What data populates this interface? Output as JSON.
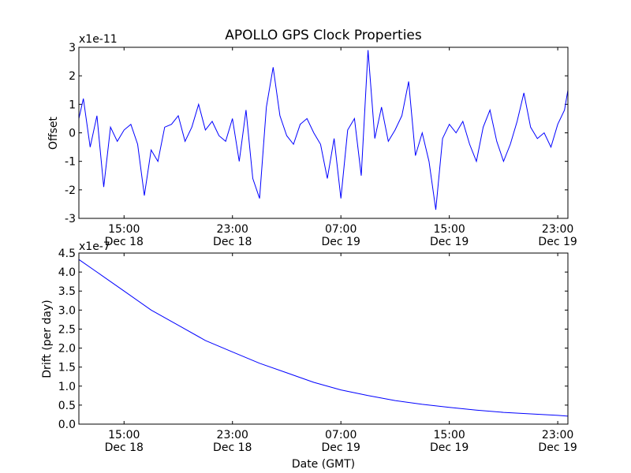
{
  "chart_data": [
    {
      "type": "line",
      "title": "APOLLO GPS Clock Properties",
      "ylabel": "Offset",
      "y_multiplier": "x1e-11",
      "ylim": [
        -3,
        3
      ],
      "y_ticks": [
        "3",
        "2",
        "1",
        "0",
        "-1",
        "-2",
        "-3"
      ],
      "x_ticks": [
        {
          "time": "15:00",
          "date": "Dec 18"
        },
        {
          "time": "23:00",
          "date": "Dec 18"
        },
        {
          "time": "07:00",
          "date": "Dec 19"
        },
        {
          "time": "15:00",
          "date": "Dec 19"
        },
        {
          "time": "23:00",
          "date": "Dec 19"
        }
      ],
      "x_start": "Dec 18 11:40",
      "x_end": "Dec 19 23:45",
      "grid": false,
      "series_color": "#0000ff",
      "series": [
        {
          "x": [
            "Dec 18 11:40",
            "Dec 18 12:00",
            "Dec 18 12:30",
            "Dec 18 13:00",
            "Dec 18 13:30",
            "Dec 18 14:00",
            "Dec 18 14:30",
            "Dec 18 15:00",
            "Dec 18 15:30",
            "Dec 18 16:00",
            "Dec 18 16:30",
            "Dec 18 17:00",
            "Dec 18 17:30",
            "Dec 18 18:00",
            "Dec 18 18:30",
            "Dec 18 19:00",
            "Dec 18 19:30",
            "Dec 18 20:00",
            "Dec 18 20:30",
            "Dec 18 21:00",
            "Dec 18 21:30",
            "Dec 18 22:00",
            "Dec 18 22:30",
            "Dec 18 23:00",
            "Dec 18 23:30",
            "Dec 19 00:00",
            "Dec 19 00:30",
            "Dec 19 01:00",
            "Dec 19 01:30",
            "Dec 19 02:00",
            "Dec 19 02:30",
            "Dec 19 03:00",
            "Dec 19 03:30",
            "Dec 19 04:00",
            "Dec 19 04:30",
            "Dec 19 05:00",
            "Dec 19 05:30",
            "Dec 19 06:00",
            "Dec 19 06:30",
            "Dec 19 07:00",
            "Dec 19 07:30",
            "Dec 19 08:00",
            "Dec 19 08:30",
            "Dec 19 09:00",
            "Dec 19 09:30",
            "Dec 19 10:00",
            "Dec 19 10:30",
            "Dec 19 11:00",
            "Dec 19 11:30",
            "Dec 19 12:00",
            "Dec 19 12:30",
            "Dec 19 13:00",
            "Dec 19 13:30",
            "Dec 19 14:00",
            "Dec 19 14:30",
            "Dec 19 15:00",
            "Dec 19 15:30",
            "Dec 19 16:00",
            "Dec 19 16:30",
            "Dec 19 17:00",
            "Dec 19 17:30",
            "Dec 19 18:00",
            "Dec 19 18:30",
            "Dec 19 19:00",
            "Dec 19 19:30",
            "Dec 19 20:00",
            "Dec 19 20:30",
            "Dec 19 21:00",
            "Dec 19 21:30",
            "Dec 19 22:00",
            "Dec 19 22:30",
            "Dec 19 23:00",
            "Dec 19 23:30",
            "Dec 19 23:45"
          ],
          "values": [
            0.5,
            1.2,
            -0.5,
            0.6,
            -1.9,
            0.2,
            -0.3,
            0.1,
            0.3,
            -0.4,
            -2.2,
            -0.6,
            -1.0,
            0.2,
            0.3,
            0.6,
            -0.3,
            0.2,
            1.0,
            0.1,
            0.4,
            -0.1,
            -0.3,
            0.5,
            -1.0,
            0.8,
            -1.6,
            -2.3,
            0.9,
            2.3,
            0.6,
            -0.1,
            -0.4,
            0.3,
            0.5,
            0.0,
            -0.4,
            -1.6,
            -0.2,
            -2.3,
            0.1,
            0.5,
            -1.5,
            2.9,
            -0.2,
            0.9,
            -0.3,
            0.1,
            0.6,
            1.8,
            -0.8,
            0.0,
            -1.0,
            -2.7,
            -0.2,
            0.3,
            0.0,
            0.4,
            -0.4,
            -1.0,
            0.2,
            0.8,
            -0.3,
            -1.0,
            -0.4,
            0.4,
            1.4,
            0.2,
            -0.2,
            0.0,
            -0.5,
            0.3,
            0.8,
            1.5
          ]
        }
      ]
    },
    {
      "type": "line",
      "xlabel": "Date (GMT)",
      "ylabel": "Drift (per day)",
      "y_multiplier": "x1e-7",
      "ylim": [
        0.0,
        4.5
      ],
      "y_ticks": [
        "4.5",
        "4.0",
        "3.5",
        "3.0",
        "2.5",
        "2.0",
        "1.5",
        "1.0",
        "0.5",
        "0.0"
      ],
      "x_ticks": [
        {
          "time": "15:00",
          "date": "Dec 18"
        },
        {
          "time": "23:00",
          "date": "Dec 18"
        },
        {
          "time": "07:00",
          "date": "Dec 19"
        },
        {
          "time": "15:00",
          "date": "Dec 19"
        },
        {
          "time": "23:00",
          "date": "Dec 19"
        }
      ],
      "x_start": "Dec 18 11:40",
      "x_end": "Dec 19 23:45",
      "grid": false,
      "series_color": "#0000ff",
      "series": [
        {
          "x": [
            "Dec 18 11:40",
            "Dec 18 13:00",
            "Dec 18 15:00",
            "Dec 18 17:00",
            "Dec 18 19:00",
            "Dec 18 21:00",
            "Dec 18 23:00",
            "Dec 19 01:00",
            "Dec 19 03:00",
            "Dec 19 05:00",
            "Dec 19 07:00",
            "Dec 19 09:00",
            "Dec 19 11:00",
            "Dec 19 13:00",
            "Dec 19 15:00",
            "Dec 19 17:00",
            "Dec 19 19:00",
            "Dec 19 21:00",
            "Dec 19 23:00",
            "Dec 19 23:45"
          ],
          "values": [
            4.33,
            4.0,
            3.5,
            3.0,
            2.6,
            2.2,
            1.9,
            1.6,
            1.35,
            1.1,
            0.9,
            0.75,
            0.62,
            0.52,
            0.44,
            0.37,
            0.31,
            0.27,
            0.23,
            0.21
          ]
        }
      ]
    }
  ]
}
